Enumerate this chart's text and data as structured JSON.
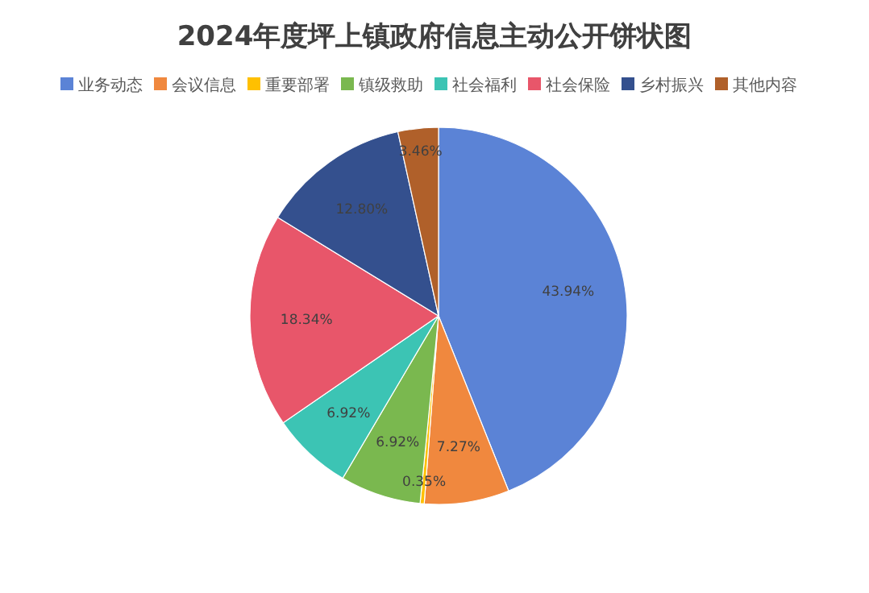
{
  "chart_data": {
    "type": "pie",
    "title": "2024年度坪上镇政府信息主动公开饼状图",
    "categories": [
      "业务动态",
      "会议信息",
      "重要部署",
      "镇级救助",
      "社会福利",
      "社会保险",
      "乡村振兴",
      "其他内容"
    ],
    "values": [
      43.94,
      7.27,
      0.35,
      6.92,
      6.92,
      18.34,
      12.8,
      3.46
    ],
    "value_labels": [
      "43.94%",
      "7.27%",
      "0.35%",
      "6.92%",
      "6.92%",
      "18.34%",
      "12.80%",
      "3.46%"
    ],
    "colors": [
      "#5b83d6",
      "#f0883e",
      "#ffc000",
      "#7ab84f",
      "#3cc4b4",
      "#e8566a",
      "#34508e",
      "#b0602a"
    ],
    "legend": "top"
  }
}
